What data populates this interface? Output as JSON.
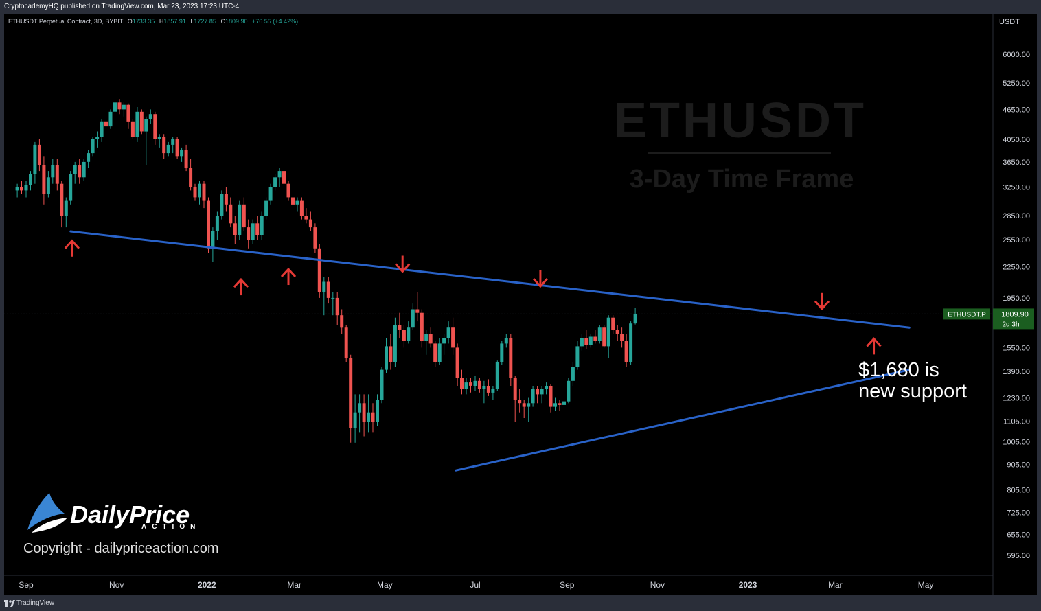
{
  "header": {
    "published_line": "CryptocademyHQ published on TradingView.com, Mar 23, 2023 17:23 UTC-4"
  },
  "legend": {
    "symbol": "ETHUSDT Perpetual Contract, 3D, BYBIT",
    "o_label": "O",
    "o_value": "1733.35",
    "h_label": "H",
    "h_value": "1857.91",
    "l_label": "L",
    "l_value": "1727.85",
    "c_label": "C",
    "c_value": "1809.90",
    "change": "+76.55 (+4.42%)"
  },
  "watermark": {
    "title": "ETHUSDT",
    "subtitle": "3-Day Time Frame"
  },
  "price_axis": {
    "currency": "USDT",
    "ticks": [
      "6000.00",
      "5250.00",
      "4650.00",
      "4050.00",
      "3650.00",
      "3250.00",
      "2850.00",
      "2550.00",
      "2250.00",
      "1950.00",
      "1550.00",
      "1390.00",
      "1230.00",
      "1105.00",
      "1005.00",
      "905.00",
      "805.00",
      "725.00",
      "655.00",
      "595.00"
    ],
    "last_label": "ETHUSDT.P",
    "last_price": "1809.90",
    "countdown": "2d 3h"
  },
  "time_axis": {
    "labels": [
      "Sep",
      "Nov",
      "2022",
      "Mar",
      "May",
      "Jul",
      "Sep",
      "Nov",
      "2023",
      "Mar",
      "May"
    ],
    "bold": [
      "2022",
      "2023"
    ]
  },
  "annotation": {
    "line1": "$1,680 is",
    "line2": "new support"
  },
  "branding": {
    "logo_word": "DailyPrice",
    "logo_sub": "ACTION",
    "copyright": "Copyright - dailypriceaction.com"
  },
  "footer": {
    "platform": "TradingView"
  },
  "colors": {
    "up": "#26a69a",
    "down": "#ef5350",
    "trendline": "#2962c8",
    "arrow": "#e53935",
    "background": "#000000"
  },
  "chart_data": {
    "type": "candlestick",
    "scale": "log",
    "ylim": [
      560,
      6700
    ],
    "x": {
      "start": "2021-08-26",
      "interval_days": 3
    },
    "candles": [
      [
        3200,
        3300,
        3100,
        3250
      ],
      [
        3250,
        3350,
        3150,
        3200
      ],
      [
        3200,
        3350,
        3100,
        3280
      ],
      [
        3280,
        3500,
        3200,
        3450
      ],
      [
        3450,
        4000,
        3300,
        3950
      ],
      [
        3950,
        4050,
        3500,
        3600
      ],
      [
        3600,
        3750,
        3000,
        3150
      ],
      [
        3150,
        3500,
        3100,
        3400
      ],
      [
        3400,
        3700,
        3300,
        3600
      ],
      [
        3600,
        3700,
        3200,
        3300
      ],
      [
        3300,
        3350,
        2700,
        2850
      ],
      [
        2850,
        3100,
        2700,
        3050
      ],
      [
        3050,
        3500,
        3000,
        3450
      ],
      [
        3450,
        3650,
        3300,
        3600
      ],
      [
        3600,
        3700,
        3300,
        3400
      ],
      [
        3400,
        3700,
        3350,
        3650
      ],
      [
        3650,
        3850,
        3550,
        3800
      ],
      [
        3800,
        4100,
        3750,
        4050
      ],
      [
        4050,
        4200,
        3900,
        4100
      ],
      [
        4100,
        4450,
        4000,
        4400
      ],
      [
        4400,
        4500,
        4200,
        4300
      ],
      [
        4300,
        4650,
        4250,
        4600
      ],
      [
        4600,
        4850,
        4500,
        4800
      ],
      [
        4800,
        4880,
        4550,
        4650
      ],
      [
        4650,
        4800,
        4500,
        4750
      ],
      [
        4750,
        4780,
        4250,
        4400
      ],
      [
        4400,
        4450,
        4050,
        4100
      ],
      [
        4100,
        4700,
        4000,
        4600
      ],
      [
        4600,
        4650,
        4150,
        4200
      ],
      [
        4200,
        4500,
        3600,
        4450
      ],
      [
        4450,
        4650,
        4350,
        4550
      ],
      [
        4550,
        4600,
        3950,
        4050
      ],
      [
        4050,
        4150,
        3900,
        4100
      ],
      [
        4100,
        4150,
        3700,
        3800
      ],
      [
        3800,
        4000,
        3750,
        3950
      ],
      [
        3950,
        4100,
        3800,
        4050
      ],
      [
        4050,
        4100,
        3700,
        3750
      ],
      [
        3750,
        3900,
        3650,
        3850
      ],
      [
        3850,
        3950,
        3500,
        3550
      ],
      [
        3550,
        3700,
        3200,
        3250
      ],
      [
        3250,
        3300,
        3050,
        3100
      ],
      [
        3100,
        3350,
        3000,
        3300
      ],
      [
        3300,
        3350,
        2950,
        3050
      ],
      [
        3050,
        3100,
        2400,
        2450
      ],
      [
        2450,
        2700,
        2300,
        2650
      ],
      [
        2650,
        2900,
        2550,
        2850
      ],
      [
        2850,
        3200,
        2800,
        3150
      ],
      [
        3150,
        3250,
        2900,
        3000
      ],
      [
        3000,
        3100,
        2700,
        2750
      ],
      [
        2750,
        2850,
        2500,
        2600
      ],
      [
        2600,
        3050,
        2550,
        3000
      ],
      [
        3000,
        3100,
        2650,
        2700
      ],
      [
        2700,
        2800,
        2450,
        2550
      ],
      [
        2550,
        2800,
        2500,
        2750
      ],
      [
        2750,
        2850,
        2550,
        2600
      ],
      [
        2600,
        2900,
        2550,
        2850
      ],
      [
        2850,
        3100,
        2800,
        3050
      ],
      [
        3050,
        3300,
        3000,
        3250
      ],
      [
        3250,
        3450,
        3200,
        3400
      ],
      [
        3400,
        3550,
        3250,
        3500
      ],
      [
        3500,
        3550,
        3250,
        3300
      ],
      [
        3300,
        3350,
        3050,
        3100
      ],
      [
        3100,
        3150,
        2950,
        3000
      ],
      [
        3000,
        3100,
        2900,
        3050
      ],
      [
        3050,
        3100,
        2800,
        2850
      ],
      [
        2850,
        2950,
        2750,
        2800
      ],
      [
        2800,
        2900,
        2650,
        2700
      ],
      [
        2700,
        2750,
        2400,
        2450
      ],
      [
        2450,
        2500,
        1950,
        2000
      ],
      [
        2000,
        2150,
        1800,
        2100
      ],
      [
        2100,
        2150,
        1900,
        1950
      ],
      [
        1950,
        2000,
        1800,
        1950
      ],
      [
        1950,
        2000,
        1720,
        1800
      ],
      [
        1800,
        1850,
        1650,
        1700
      ],
      [
        1700,
        1720,
        1450,
        1480
      ],
      [
        1480,
        1500,
        1000,
        1070
      ],
      [
        1070,
        1250,
        1000,
        1150
      ],
      [
        1150,
        1250,
        1050,
        1200
      ],
      [
        1200,
        1250,
        1030,
        1100
      ],
      [
        1100,
        1250,
        1050,
        1150
      ],
      [
        1150,
        1200,
        1050,
        1100
      ],
      [
        1100,
        1250,
        1080,
        1220
      ],
      [
        1220,
        1420,
        1200,
        1400
      ],
      [
        1400,
        1620,
        1380,
        1560
      ],
      [
        1560,
        1650,
        1400,
        1450
      ],
      [
        1450,
        1780,
        1420,
        1720
      ],
      [
        1720,
        1820,
        1620,
        1680
      ],
      [
        1680,
        1720,
        1550,
        1600
      ],
      [
        1600,
        1750,
        1580,
        1700
      ],
      [
        1700,
        1900,
        1680,
        1850
      ],
      [
        1850,
        2000,
        1750,
        1820
      ],
      [
        1820,
        1850,
        1550,
        1600
      ],
      [
        1600,
        1680,
        1500,
        1650
      ],
      [
        1650,
        1700,
        1550,
        1580
      ],
      [
        1580,
        1600,
        1420,
        1450
      ],
      [
        1450,
        1620,
        1430,
        1580
      ],
      [
        1580,
        1650,
        1500,
        1620
      ],
      [
        1620,
        1750,
        1580,
        1700
      ],
      [
        1700,
        1780,
        1500,
        1550
      ],
      [
        1550,
        1580,
        1300,
        1350
      ],
      [
        1350,
        1400,
        1250,
        1280
      ],
      [
        1280,
        1350,
        1250,
        1320
      ],
      [
        1320,
        1350,
        1260,
        1300
      ],
      [
        1300,
        1360,
        1270,
        1330
      ],
      [
        1330,
        1350,
        1260,
        1280
      ],
      [
        1280,
        1330,
        1200,
        1300
      ],
      [
        1300,
        1340,
        1240,
        1260
      ],
      [
        1260,
        1300,
        1220,
        1280
      ],
      [
        1280,
        1460,
        1270,
        1450
      ],
      [
        1450,
        1600,
        1430,
        1580
      ],
      [
        1580,
        1650,
        1550,
        1620
      ],
      [
        1620,
        1650,
        1300,
        1350
      ],
      [
        1350,
        1360,
        1100,
        1220
      ],
      [
        1220,
        1280,
        1150,
        1200
      ],
      [
        1200,
        1220,
        1120,
        1180
      ],
      [
        1180,
        1230,
        1100,
        1200
      ],
      [
        1200,
        1300,
        1180,
        1280
      ],
      [
        1280,
        1300,
        1200,
        1250
      ],
      [
        1250,
        1300,
        1200,
        1280
      ],
      [
        1280,
        1320,
        1250,
        1300
      ],
      [
        1300,
        1310,
        1150,
        1180
      ],
      [
        1180,
        1230,
        1160,
        1200
      ],
      [
        1200,
        1220,
        1160,
        1190
      ],
      [
        1190,
        1230,
        1170,
        1210
      ],
      [
        1210,
        1350,
        1200,
        1330
      ],
      [
        1330,
        1450,
        1300,
        1420
      ],
      [
        1420,
        1600,
        1400,
        1560
      ],
      [
        1560,
        1650,
        1530,
        1620
      ],
      [
        1620,
        1680,
        1540,
        1570
      ],
      [
        1570,
        1650,
        1550,
        1630
      ],
      [
        1630,
        1680,
        1580,
        1600
      ],
      [
        1600,
        1720,
        1580,
        1700
      ],
      [
        1700,
        1720,
        1550,
        1560
      ],
      [
        1560,
        1800,
        1480,
        1780
      ],
      [
        1780,
        1800,
        1650,
        1680
      ],
      [
        1680,
        1720,
        1600,
        1650
      ],
      [
        1650,
        1700,
        1550,
        1600
      ],
      [
        1600,
        1650,
        1420,
        1450
      ],
      [
        1450,
        1750,
        1430,
        1733
      ],
      [
        1733,
        1860,
        1725,
        1810
      ]
    ],
    "trendlines": [
      {
        "name": "descending resistance",
        "from": [
          "2021-10-01",
          2650
        ],
        "to": [
          "2023-04-20",
          1700
        ]
      },
      {
        "name": "rising support",
        "from": [
          "2022-06-18",
          880
        ],
        "to": [
          "2023-04-20",
          1400
        ]
      }
    ],
    "last_price": 1809.9
  }
}
